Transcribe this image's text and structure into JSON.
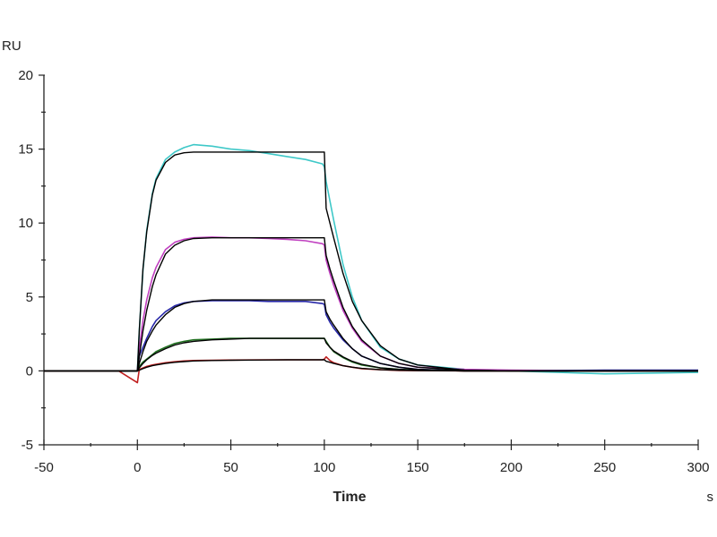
{
  "chart_data": {
    "type": "line",
    "title": "",
    "xlabel": "Time",
    "x_unit": "s",
    "ylabel": "RU",
    "xlim": [
      -50,
      300
    ],
    "ylim": [
      -5,
      20
    ],
    "x_ticks": [
      -50,
      0,
      50,
      100,
      150,
      200,
      250,
      300
    ],
    "y_ticks": [
      -5,
      0,
      5,
      10,
      15,
      20
    ],
    "grid": false,
    "legend": "none",
    "x": [
      -50,
      -10,
      0,
      1,
      3,
      5,
      8,
      10,
      15,
      20,
      25,
      30,
      40,
      50,
      60,
      70,
      80,
      90,
      99,
      100,
      101,
      103,
      105,
      110,
      115,
      120,
      130,
      140,
      150,
      175,
      200,
      250,
      300
    ],
    "series": [
      {
        "color": "#3ec8c8",
        "kind": "data",
        "values": [
          0,
          0,
          0,
          2.7,
          6.8,
          9.5,
          12.0,
          13.0,
          14.3,
          14.8,
          15.1,
          15.3,
          15.2,
          15.0,
          14.9,
          14.7,
          14.5,
          14.3,
          14.0,
          13.8,
          12.8,
          11.5,
          10.2,
          7.2,
          5.0,
          3.4,
          1.6,
          0.8,
          0.4,
          0.1,
          0.0,
          -0.2,
          -0.1
        ]
      },
      {
        "color": "#c040c0",
        "kind": "data",
        "values": [
          0,
          0,
          0,
          1.5,
          3.4,
          4.8,
          6.3,
          7.0,
          8.2,
          8.7,
          8.9,
          9.0,
          9.05,
          9.0,
          9.0,
          8.95,
          8.9,
          8.8,
          8.6,
          8.5,
          7.5,
          6.6,
          5.8,
          4.1,
          2.9,
          2.0,
          1.0,
          0.5,
          0.25,
          0.1,
          0.05,
          0,
          0
        ]
      },
      {
        "color": "#2828a8",
        "kind": "data",
        "values": [
          0,
          0,
          0,
          1.0,
          1.6,
          2.2,
          3.0,
          3.4,
          4.0,
          4.4,
          4.6,
          4.7,
          4.75,
          4.75,
          4.75,
          4.7,
          4.7,
          4.7,
          4.55,
          4.5,
          3.8,
          3.3,
          2.9,
          2.1,
          1.5,
          1.0,
          0.5,
          0.25,
          0.1,
          0,
          0,
          0.05,
          0.05
        ]
      },
      {
        "color": "#207020",
        "kind": "data",
        "values": [
          0,
          0,
          0,
          0.3,
          0.6,
          0.8,
          1.1,
          1.3,
          1.6,
          1.85,
          2.0,
          2.1,
          2.15,
          2.2,
          2.2,
          2.2,
          2.2,
          2.2,
          2.2,
          2.2,
          2.0,
          1.6,
          1.3,
          0.9,
          0.6,
          0.4,
          0.2,
          0.1,
          0.05,
          0,
          0,
          0,
          0
        ]
      },
      {
        "color": "#c02020",
        "kind": "data",
        "values": [
          0,
          0,
          -0.8,
          0.1,
          0.2,
          0.3,
          0.4,
          0.45,
          0.55,
          0.62,
          0.67,
          0.7,
          0.72,
          0.73,
          0.74,
          0.75,
          0.75,
          0.75,
          0.75,
          0.8,
          0.95,
          0.7,
          0.55,
          0.35,
          0.25,
          0.15,
          0.08,
          0.03,
          0.02,
          0,
          0,
          0,
          0
        ]
      },
      {
        "color": "#000000",
        "kind": "fit",
        "values": [
          0,
          0,
          0,
          2.7,
          6.9,
          9.4,
          11.9,
          12.9,
          14.1,
          14.6,
          14.75,
          14.8,
          14.8,
          14.8,
          14.8,
          14.8,
          14.8,
          14.8,
          14.8,
          14.8,
          11.0,
          10.0,
          9.0,
          6.6,
          4.7,
          3.4,
          1.7,
          0.8,
          0.4,
          0.05,
          0,
          0,
          0
        ]
      },
      {
        "color": "#000000",
        "kind": "fit",
        "values": [
          0,
          0,
          0,
          1.0,
          2.7,
          4.1,
          5.7,
          6.5,
          7.9,
          8.5,
          8.8,
          8.95,
          9.0,
          9.0,
          9.0,
          9.0,
          9.0,
          9.0,
          9.0,
          9.0,
          7.8,
          6.9,
          6.1,
          4.3,
          3.0,
          2.1,
          1.0,
          0.5,
          0.25,
          0.05,
          0,
          0,
          0
        ]
      },
      {
        "color": "#000000",
        "kind": "fit",
        "values": [
          0,
          0,
          0,
          0.5,
          1.3,
          2.0,
          2.7,
          3.1,
          3.8,
          4.3,
          4.55,
          4.7,
          4.8,
          4.8,
          4.8,
          4.8,
          4.8,
          4.8,
          4.8,
          4.8,
          4.0,
          3.5,
          3.1,
          2.2,
          1.5,
          1.0,
          0.5,
          0.25,
          0.1,
          0,
          0,
          0,
          0
        ]
      },
      {
        "color": "#000000",
        "kind": "fit",
        "values": [
          0,
          0,
          0,
          0.2,
          0.5,
          0.75,
          1.05,
          1.2,
          1.5,
          1.75,
          1.9,
          2.0,
          2.1,
          2.15,
          2.2,
          2.2,
          2.2,
          2.2,
          2.2,
          2.2,
          1.9,
          1.6,
          1.35,
          0.95,
          0.65,
          0.45,
          0.2,
          0.1,
          0.05,
          0,
          0,
          0,
          0
        ]
      },
      {
        "color": "#000000",
        "kind": "fit",
        "values": [
          0,
          0,
          0,
          0.05,
          0.15,
          0.25,
          0.35,
          0.4,
          0.5,
          0.58,
          0.63,
          0.67,
          0.7,
          0.72,
          0.73,
          0.74,
          0.75,
          0.75,
          0.75,
          0.75,
          0.65,
          0.58,
          0.5,
          0.35,
          0.25,
          0.17,
          0.08,
          0.04,
          0.02,
          0,
          0,
          0,
          0
        ]
      }
    ]
  }
}
